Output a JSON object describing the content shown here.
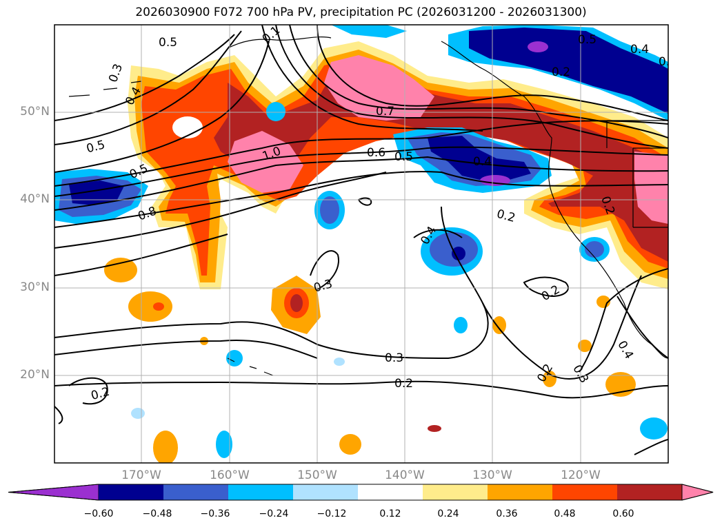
{
  "title": "2026030900 F072 700 hPa PV, precipitation PC (2026031200 - 2026031300)",
  "latitude_labels": [
    "50°N",
    "40°N",
    "30°N",
    "20°N"
  ],
  "longitude_labels": [
    "170°W",
    "160°W",
    "150°W",
    "140°W",
    "130°W",
    "120°W"
  ],
  "colorbar": {
    "ticks": [
      "−0.60",
      "−0.48",
      "−0.36",
      "−0.24",
      "−0.12",
      "0.12",
      "0.24",
      "0.36",
      "0.48",
      "0.60"
    ],
    "colors": [
      "#9b30d0",
      "#000090",
      "#3a5fcd",
      "#00bfff",
      "#b0e2ff",
      "#ffffff",
      "#ffec8b",
      "#ffa500",
      "#ff4500",
      "#b22222",
      "#ff82ab"
    ]
  },
  "contour_labels": [
    "0.5",
    "0.3",
    "0.4",
    "0.5",
    "0.5",
    "0.8",
    "1.0",
    "0.7",
    "0.6",
    "0.5",
    "0.4",
    "0.2",
    "0.5",
    "0.4",
    "0.2",
    "0.2",
    "0.4",
    "0.3",
    "0.2",
    "0.3",
    "0.2",
    "0.2",
    "0.4",
    "0.3",
    "0.2",
    "0.2",
    "0.1"
  ]
}
